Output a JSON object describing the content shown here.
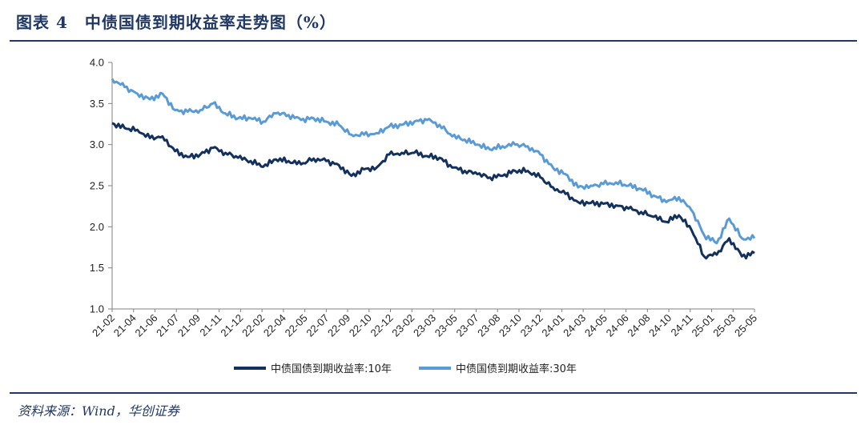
{
  "figure": {
    "title": "图表 4　中债国债到期收益率走势图（%）",
    "source": "资料来源：Wind，华创证券"
  },
  "chart_data": {
    "type": "line",
    "ylim": [
      1.0,
      4.0
    ],
    "yticks": [
      "1.0",
      "1.5",
      "2.0",
      "2.5",
      "3.0",
      "3.5",
      "4.0"
    ],
    "xticks": [
      "21-02",
      "21-04",
      "21-06",
      "21-07",
      "21-09",
      "21-11",
      "21-12",
      "22-02",
      "22-04",
      "22-05",
      "22-07",
      "22-09",
      "22-10",
      "22-12",
      "23-02",
      "23-03",
      "23-05",
      "23-07",
      "23-08",
      "23-10",
      "23-12",
      "24-01",
      "24-03",
      "24-05",
      "24-06",
      "24-08",
      "24-10",
      "24-11",
      "25-01",
      "25-03",
      "25-05"
    ],
    "grid": false,
    "legend_position": "bottom",
    "x": [
      "21-02",
      "21-03",
      "21-04",
      "21-05",
      "21-06",
      "21-07",
      "21-08",
      "21-09",
      "21-10",
      "21-11",
      "21-12",
      "22-01",
      "22-02",
      "22-03",
      "22-04",
      "22-05",
      "22-06",
      "22-07",
      "22-08",
      "22-09",
      "22-10",
      "22-11",
      "22-12",
      "23-01",
      "23-02",
      "23-03",
      "23-04",
      "23-05",
      "23-06",
      "23-07",
      "23-08",
      "23-09",
      "23-10",
      "23-11",
      "23-12",
      "24-01",
      "24-02",
      "24-03",
      "24-04",
      "24-05",
      "24-06",
      "24-07",
      "24-08",
      "24-09",
      "24-10",
      "24-11",
      "24-12",
      "25-01",
      "25-02",
      "25-03",
      "25-04",
      "25-05"
    ],
    "series": [
      {
        "name": "中债国债到期收益率:10年",
        "color": "#13315c",
        "values": [
          3.26,
          3.2,
          3.18,
          3.08,
          3.1,
          2.92,
          2.85,
          2.88,
          2.96,
          2.9,
          2.84,
          2.8,
          2.73,
          2.82,
          2.8,
          2.76,
          2.83,
          2.8,
          2.75,
          2.62,
          2.7,
          2.72,
          2.88,
          2.9,
          2.9,
          2.86,
          2.84,
          2.72,
          2.68,
          2.64,
          2.6,
          2.62,
          2.68,
          2.68,
          2.6,
          2.48,
          2.4,
          2.3,
          2.29,
          2.28,
          2.26,
          2.22,
          2.18,
          2.12,
          2.06,
          2.14,
          1.96,
          1.64,
          1.66,
          1.86,
          1.64,
          1.68
        ]
      },
      {
        "name": "中债国债到期收益率:30年",
        "color": "#5b9bd5",
        "values": [
          3.8,
          3.7,
          3.62,
          3.55,
          3.62,
          3.42,
          3.4,
          3.42,
          3.5,
          3.38,
          3.32,
          3.32,
          3.28,
          3.38,
          3.36,
          3.3,
          3.32,
          3.28,
          3.24,
          3.12,
          3.12,
          3.14,
          3.22,
          3.24,
          3.28,
          3.3,
          3.24,
          3.1,
          3.06,
          3.0,
          2.94,
          2.98,
          3.0,
          2.98,
          2.88,
          2.72,
          2.64,
          2.48,
          2.5,
          2.52,
          2.54,
          2.5,
          2.46,
          2.38,
          2.3,
          2.36,
          2.2,
          1.9,
          1.8,
          2.1,
          1.86,
          1.86
        ]
      }
    ]
  }
}
